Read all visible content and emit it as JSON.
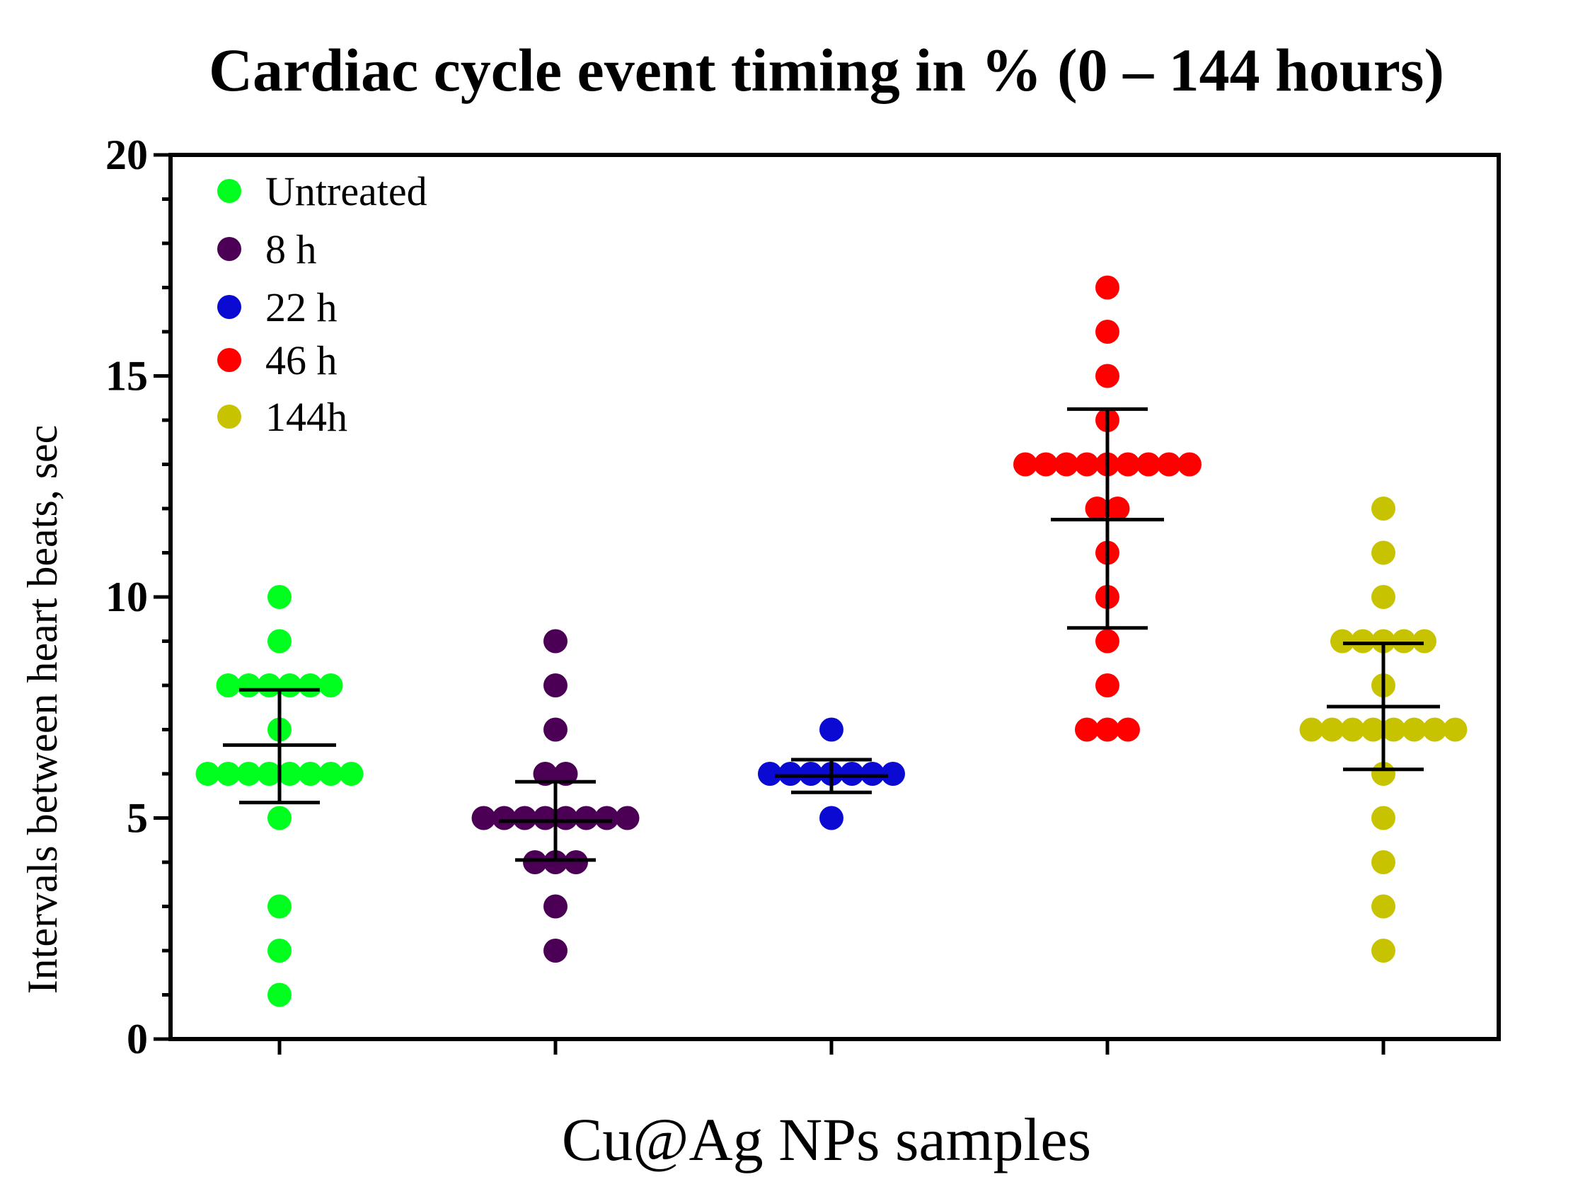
{
  "chart_data": {
    "type": "scatter",
    "title": "Cardiac cycle event timing in % (0 – 144 hours)",
    "xlabel": "Cu@Ag NPs samples",
    "ylabel": "Intervals between heart beats, sec",
    "ylim": [
      0,
      20
    ],
    "yticks": [
      0,
      5,
      10,
      15,
      20
    ],
    "y_minor_step": 1,
    "legend_position": "top-left",
    "grid": false,
    "series": [
      {
        "name": "Untreated",
        "color": "#00ff1e",
        "summary_color": "#000000",
        "mean": 6.65,
        "sd_upper": 7.9,
        "sd_lower": 5.35,
        "points": [
          {
            "y": 10,
            "n": 1
          },
          {
            "y": 9,
            "n": 1
          },
          {
            "y": 8,
            "n": 6
          },
          {
            "y": 7,
            "n": 1
          },
          {
            "y": 6,
            "n": 8
          },
          {
            "y": 5,
            "n": 1
          },
          {
            "y": 3,
            "n": 1
          },
          {
            "y": 2,
            "n": 1
          },
          {
            "y": 1,
            "n": 1
          }
        ]
      },
      {
        "name": "8 h",
        "color": "#4b0055",
        "summary_color": "#000000",
        "mean": 4.93,
        "sd_upper": 5.82,
        "sd_lower": 4.05,
        "points": [
          {
            "y": 9,
            "n": 1
          },
          {
            "y": 8,
            "n": 1
          },
          {
            "y": 7,
            "n": 1
          },
          {
            "y": 6,
            "n": 2
          },
          {
            "y": 5,
            "n": 8
          },
          {
            "y": 4,
            "n": 3
          },
          {
            "y": 3,
            "n": 1
          },
          {
            "y": 2,
            "n": 1
          }
        ]
      },
      {
        "name": "22 h",
        "color": "#0a0ad2",
        "summary_color": "#000000",
        "mean": 5.95,
        "sd_upper": 6.32,
        "sd_lower": 5.58,
        "points": [
          {
            "y": 7,
            "n": 1
          },
          {
            "y": 6,
            "n": 7
          },
          {
            "y": 5,
            "n": 1
          }
        ]
      },
      {
        "name": "46 h",
        "color": "#ff0000",
        "summary_color": "#000000",
        "mean": 11.75,
        "sd_upper": 14.25,
        "sd_lower": 9.3,
        "points": [
          {
            "y": 17,
            "n": 1
          },
          {
            "y": 16,
            "n": 1
          },
          {
            "y": 15,
            "n": 1
          },
          {
            "y": 14,
            "n": 1
          },
          {
            "y": 13,
            "n": 9
          },
          {
            "y": 12,
            "n": 2
          },
          {
            "y": 11,
            "n": 1
          },
          {
            "y": 10,
            "n": 1
          },
          {
            "y": 9,
            "n": 1
          },
          {
            "y": 8,
            "n": 1
          },
          {
            "y": 7,
            "n": 3
          }
        ]
      },
      {
        "name": "144h",
        "color": "#c8c300",
        "summary_color": "#000000",
        "mean": 7.52,
        "sd_upper": 8.95,
        "sd_lower": 6.1,
        "points": [
          {
            "y": 12,
            "n": 1
          },
          {
            "y": 11,
            "n": 1
          },
          {
            "y": 10,
            "n": 1
          },
          {
            "y": 9,
            "n": 5
          },
          {
            "y": 8,
            "n": 1
          },
          {
            "y": 7,
            "n": 8
          },
          {
            "y": 6,
            "n": 1
          },
          {
            "y": 5,
            "n": 1
          },
          {
            "y": 4,
            "n": 1
          },
          {
            "y": 3,
            "n": 1
          },
          {
            "y": 2,
            "n": 1
          }
        ]
      }
    ]
  }
}
